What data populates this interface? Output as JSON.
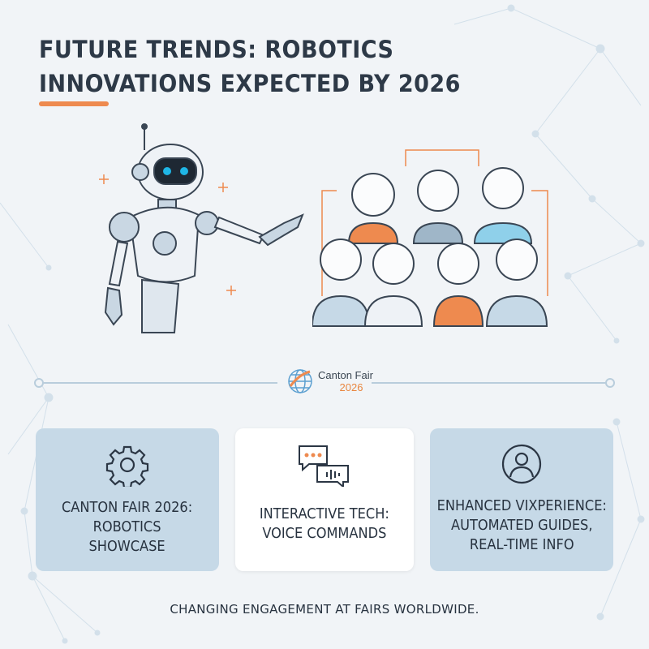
{
  "title": {
    "line1": "FUTURE TRENDS: ROBOTICS",
    "line2": "INNOVATIONS EXPECTED BY 2026"
  },
  "logo": {
    "name": "Canton Fair",
    "year": "2026"
  },
  "cards": [
    {
      "icon": "gear-icon",
      "text_lines": [
        "CANTON FAIR 2026:",
        "ROBOTICS",
        "SHOWCASE"
      ]
    },
    {
      "icon": "chat-voice-icon",
      "text_lines": [
        "INTERACTIVE TECH:",
        "VOICE COMMANDS"
      ]
    },
    {
      "icon": "user-icon",
      "text_lines": [
        "ENHANCED VIXPERIENCE:",
        "AUTOMATED GUIDES,",
        "REAL-TIME INFO"
      ]
    }
  ],
  "footer": "CHANGING ENGAGEMENT AT FAIRS WORLDWIDE.",
  "colors": {
    "accent": "#ee8a4f",
    "card_blue": "#c6d9e7",
    "title": "#2d3947",
    "robot_eye": "#1fb6e6"
  }
}
